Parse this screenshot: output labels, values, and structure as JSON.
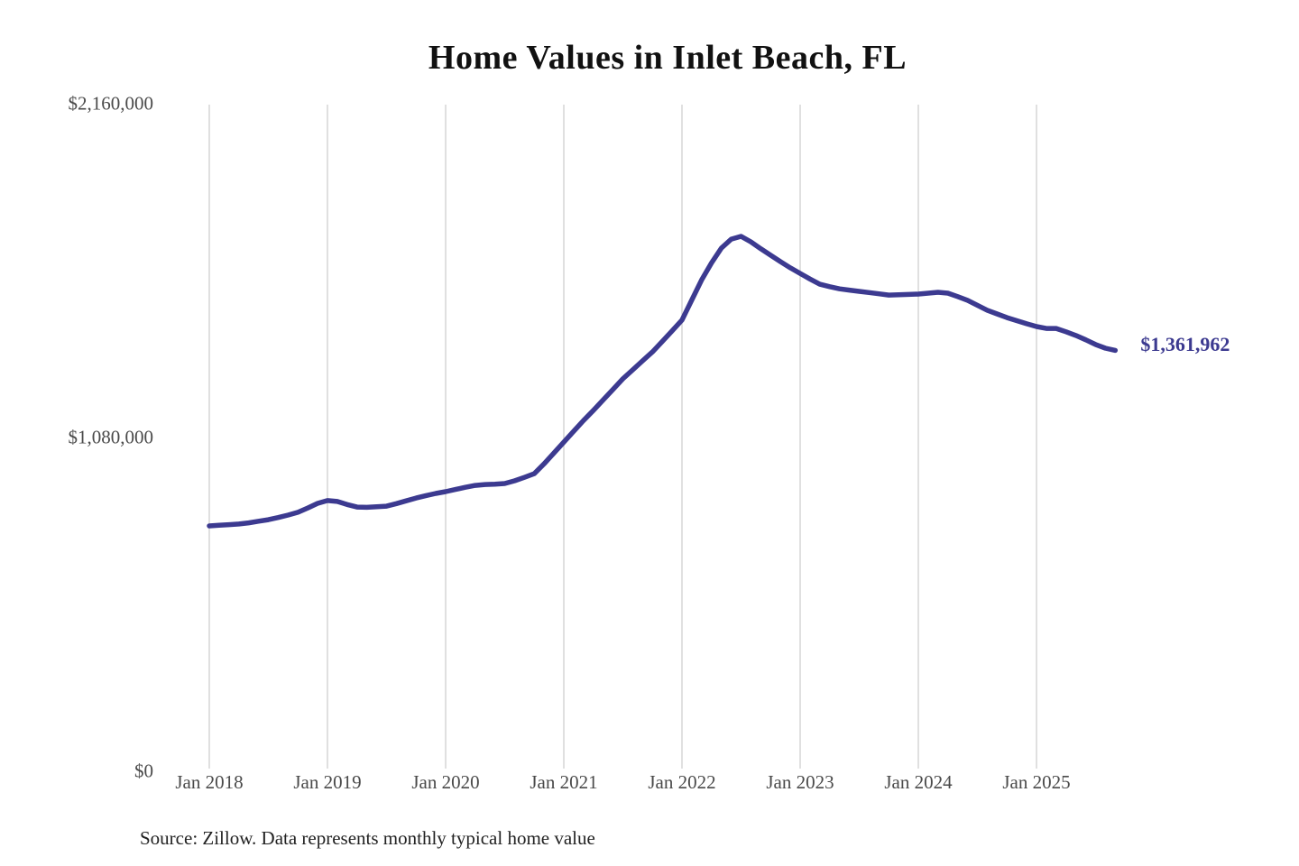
{
  "page": {
    "background": "#ffffff"
  },
  "chart": {
    "title": "Home Values in Inlet Beach, FL",
    "end_label": "$1,361,962",
    "source_note": "Source: Zillow. Data represents monthly typical home value",
    "line_color": "#3c3a90",
    "grid_color": "#cbcbcb",
    "axis_label_color": "#4a4a4a",
    "title_color": "#111111"
  },
  "chart_data": {
    "type": "line",
    "title": "Home Values in Inlet Beach, FL",
    "xlabel": "",
    "ylabel": "",
    "ylim": [
      0,
      2160000
    ],
    "grid": "vertical-only",
    "legend": "none",
    "y_ticks": [
      {
        "label": "$0",
        "value": 0
      },
      {
        "label": "$1,080,000",
        "value": 1080000
      },
      {
        "label": "$2,160,000",
        "value": 2160000
      }
    ],
    "x_ticks": [
      "Jan 2018",
      "Jan 2019",
      "Jan 2020",
      "Jan 2021",
      "Jan 2022",
      "Jan 2023",
      "Jan 2024",
      "Jan 2025"
    ],
    "annotation": {
      "text": "$1,361,962",
      "month": "2025-09",
      "value": 1361962
    },
    "series": [
      {
        "name": "Monthly typical home value",
        "months": [
          "2018-01",
          "2018-02",
          "2018-03",
          "2018-04",
          "2018-05",
          "2018-06",
          "2018-07",
          "2018-08",
          "2018-09",
          "2018-10",
          "2018-11",
          "2018-12",
          "2019-01",
          "2019-02",
          "2019-03",
          "2019-04",
          "2019-05",
          "2019-06",
          "2019-07",
          "2019-08",
          "2019-09",
          "2019-10",
          "2019-11",
          "2019-12",
          "2020-01",
          "2020-02",
          "2020-03",
          "2020-04",
          "2020-05",
          "2020-06",
          "2020-07",
          "2020-08",
          "2020-09",
          "2020-10",
          "2020-11",
          "2020-12",
          "2021-01",
          "2021-02",
          "2021-03",
          "2021-04",
          "2021-05",
          "2021-06",
          "2021-07",
          "2021-08",
          "2021-09",
          "2021-10",
          "2021-11",
          "2021-12",
          "2022-01",
          "2022-02",
          "2022-03",
          "2022-04",
          "2022-05",
          "2022-06",
          "2022-07",
          "2022-08",
          "2022-09",
          "2022-10",
          "2022-11",
          "2022-12",
          "2023-01",
          "2023-02",
          "2023-03",
          "2023-04",
          "2023-05",
          "2023-06",
          "2023-07",
          "2023-08",
          "2023-09",
          "2023-10",
          "2023-11",
          "2023-12",
          "2024-01",
          "2024-02",
          "2024-03",
          "2024-04",
          "2024-05",
          "2024-06",
          "2024-07",
          "2024-08",
          "2024-09",
          "2024-10",
          "2024-11",
          "2024-12",
          "2025-01",
          "2025-02",
          "2025-03",
          "2025-04",
          "2025-05",
          "2025-06",
          "2025-07",
          "2025-08",
          "2025-09"
        ],
        "values": [
          794000,
          796000,
          798000,
          800000,
          804000,
          809000,
          814000,
          821000,
          829000,
          838000,
          852000,
          867000,
          876000,
          873000,
          863000,
          855000,
          854000,
          856000,
          858000,
          866000,
          875000,
          884000,
          892000,
          899000,
          905000,
          912000,
          919000,
          925000,
          928000,
          929000,
          931000,
          940000,
          951000,
          963000,
          995000,
          1030000,
          1065000,
          1100000,
          1135000,
          1168000,
          1202000,
          1236000,
          1270000,
          1299000,
          1328000,
          1357000,
          1391000,
          1425000,
          1460000,
          1525000,
          1590000,
          1645000,
          1693000,
          1722000,
          1731000,
          1713000,
          1691000,
          1670000,
          1649000,
          1629000,
          1611000,
          1593000,
          1576000,
          1568000,
          1561000,
          1557000,
          1553000,
          1549000,
          1545000,
          1541000,
          1542000,
          1543000,
          1544000,
          1547000,
          1550000,
          1547000,
          1536000,
          1524000,
          1508000,
          1492000,
          1480000,
          1468000,
          1458000,
          1448000,
          1439000,
          1433000,
          1433000,
          1422000,
          1410000,
          1396000,
          1381000,
          1369000,
          1361962
        ]
      }
    ]
  }
}
